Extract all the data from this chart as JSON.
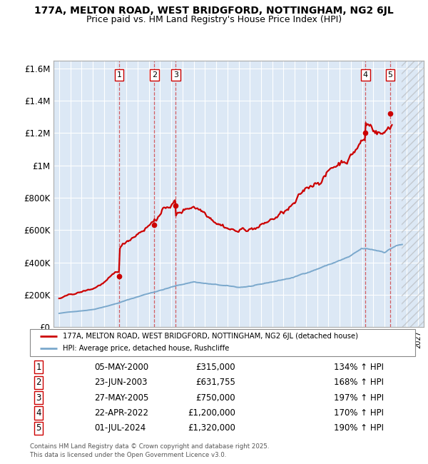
{
  "title1": "177A, MELTON ROAD, WEST BRIDGFORD, NOTTINGHAM, NG2 6JL",
  "title2": "Price paid vs. HM Land Registry's House Price Index (HPI)",
  "transactions": [
    {
      "num": 1,
      "date": "05-MAY-2000",
      "year": 2000.35,
      "price": 315000,
      "pct": "134% ↑ HPI"
    },
    {
      "num": 2,
      "date": "23-JUN-2003",
      "year": 2003.48,
      "price": 631755,
      "pct": "168% ↑ HPI"
    },
    {
      "num": 3,
      "date": "27-MAY-2005",
      "year": 2005.4,
      "price": 750000,
      "pct": "197% ↑ HPI"
    },
    {
      "num": 4,
      "date": "22-APR-2022",
      "year": 2022.31,
      "price": 1200000,
      "pct": "170% ↑ HPI"
    },
    {
      "num": 5,
      "date": "01-JUL-2024",
      "year": 2024.5,
      "price": 1320000,
      "pct": "190% ↑ HPI"
    }
  ],
  "legend_line1": "177A, MELTON ROAD, WEST BRIDGFORD, NOTTINGHAM, NG2 6JL (detached house)",
  "legend_line2": "HPI: Average price, detached house, Rushcliffe",
  "footer": "Contains HM Land Registry data © Crown copyright and database right 2025.\nThis data is licensed under the Open Government Licence v3.0.",
  "xlim_left": 1994.5,
  "xlim_right": 2027.5,
  "ylim_top": 1650000,
  "yticks": [
    0,
    200000,
    400000,
    600000,
    800000,
    1000000,
    1200000,
    1400000,
    1600000
  ],
  "ytick_labels": [
    "£0",
    "£200K",
    "£400K",
    "£600K",
    "£800K",
    "£1M",
    "£1.2M",
    "£1.4M",
    "£1.6M"
  ],
  "red_color": "#cc0000",
  "blue_color": "#7aa8cc",
  "chart_bg": "#dce8f5",
  "grid_color": "#ffffff",
  "hatch_start": 2025.5
}
